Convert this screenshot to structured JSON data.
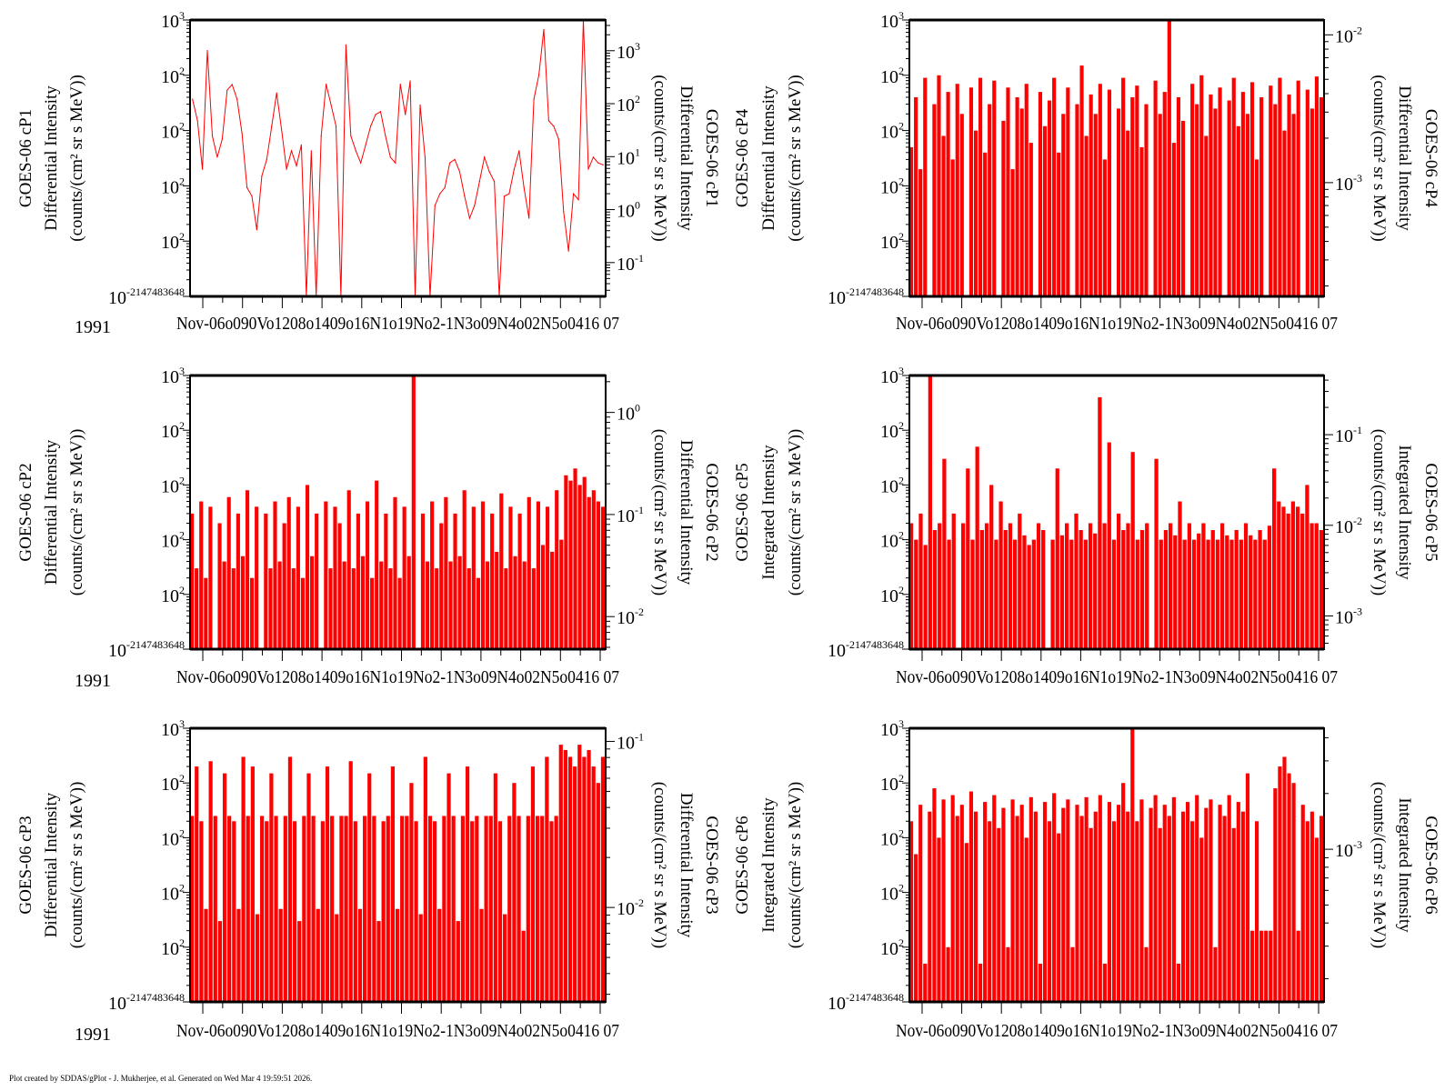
{
  "footer": "Plot created by SDDAS/gPlot - J. Mukherjee, et al.  Generated on Wed Mar 4 19:59:51 2026.",
  "year_label": "1991",
  "x_tick_text": "Nov-06o090Vo1208o1409o16N1o19No2-1N3o09N4o02N5o0416 07",
  "colors": {
    "series": "#ff0000",
    "axis": "#000000"
  },
  "chart_data": [
    {
      "type": "line",
      "scale": "log",
      "title": "GOES-06 cP1",
      "ylabel": "Differential Intensity",
      "yunits": "(counts/(cm² sr s MeV))",
      "left_tick_exponents": [
        "3",
        "2",
        "2",
        "2",
        "2",
        "-2147483648"
      ],
      "ylim": [
        0.01,
        1000
      ],
      "right_ylim": [
        0.023,
        3800
      ],
      "right_tick_exponents": [
        "3",
        "2",
        "1",
        "0",
        "-1"
      ],
      "values": [
        37,
        15,
        2,
        280,
        8,
        3.3,
        7,
        54,
        68,
        37,
        9,
        0.93,
        0.65,
        0.16,
        1.5,
        3,
        12,
        48,
        10.5,
        2,
        4.3,
        2.3,
        5.5,
        0.01,
        4.3,
        0.01,
        8,
        69,
        29,
        12,
        0.01,
        355,
        8,
        4.3,
        2.6,
        5.5,
        12,
        19.5,
        22,
        8,
        3.3,
        2.6,
        69,
        19.5,
        79,
        0.01,
        29,
        3.3,
        0.01,
        0.44,
        0.72,
        0.93,
        2.6,
        3,
        1.8,
        0.65,
        0.26,
        0.44,
        1.2,
        3.3,
        1.8,
        1.2,
        0.01,
        0.65,
        0.72,
        2,
        4.3,
        0.93,
        0.26,
        37,
        102,
        676,
        15,
        12,
        7,
        0.34,
        0.066,
        0.72,
        0.56,
        1000,
        2,
        3.3,
        2.6,
        2.4
      ]
    },
    {
      "type": "bar",
      "scale": "log",
      "title": "GOES-06 cP4",
      "ylabel": "Differential Intensity",
      "yunits": "(counts/(cm² sr s MeV))",
      "left_tick_exponents": [
        "3",
        "2",
        "2",
        "2",
        "2",
        "-2147483648"
      ],
      "ylim": [
        0.01,
        1000
      ],
      "right_ylim": [
        0.00017,
        0.0126
      ],
      "right_tick_exponents": [
        "-2",
        "-3"
      ],
      "values": [
        5,
        40,
        2,
        90,
        0.01,
        30,
        100,
        8,
        50,
        3,
        70,
        20,
        0.01,
        60,
        10,
        90,
        4,
        30,
        80,
        0.01,
        15,
        60,
        2,
        40,
        25,
        70,
        6,
        0.01,
        50,
        12,
        35,
        90,
        4,
        20,
        60,
        0.01,
        30,
        150,
        8,
        45,
        20,
        70,
        3,
        55,
        0.01,
        25,
        90,
        10,
        40,
        65,
        5,
        30,
        0.01,
        80,
        20,
        50,
        1000,
        6,
        40,
        15,
        0.01,
        70,
        30,
        100,
        8,
        45,
        25,
        60,
        0.01,
        35,
        90,
        12,
        50,
        20,
        75,
        3,
        40,
        0.01,
        65,
        30,
        90,
        10,
        45,
        20,
        80,
        0.01,
        55,
        25,
        95,
        40
      ]
    },
    {
      "type": "bar",
      "scale": "log",
      "title": "GOES-06 cP2",
      "ylabel": "Differential Intensity",
      "yunits": "(counts/(cm² sr s MeV))",
      "left_tick_exponents": [
        "3",
        "2",
        "2",
        "2",
        "2",
        "-2147483648"
      ],
      "ylim": [
        0.01,
        1000
      ],
      "right_ylim": [
        0.0048,
        2.3
      ],
      "right_tick_exponents": [
        "0",
        "-1",
        "-2"
      ],
      "values": [
        3,
        0.3,
        5,
        0.2,
        4,
        0.01,
        2,
        0.4,
        6,
        0.3,
        3,
        0.5,
        8,
        0.2,
        4,
        0.01,
        3,
        0.3,
        5,
        0.4,
        2,
        6,
        0.3,
        4,
        0.2,
        10,
        0.5,
        3,
        0.01,
        5,
        0.3,
        4,
        2,
        0.4,
        8,
        0.3,
        3,
        0.5,
        5,
        0.2,
        12,
        0.4,
        3,
        0.3,
        6,
        0.2,
        4,
        0.5,
        1000,
        0.01,
        3,
        0.4,
        5,
        0.3,
        2,
        6,
        0.4,
        3,
        0.5,
        8,
        0.3,
        4,
        0.2,
        5,
        0.4,
        3,
        0.6,
        7,
        0.3,
        4,
        0.5,
        3,
        0.4,
        6,
        0.3,
        5,
        0.8,
        4,
        0.6,
        8,
        1,
        15,
        12,
        20,
        10,
        14,
        6,
        8,
        5,
        4
      ]
    },
    {
      "type": "bar",
      "scale": "log",
      "title": "GOES-06 cP5",
      "ylabel": "Integrated Intensity",
      "yunits": "(counts/(cm² sr s MeV))",
      "left_tick_exponents": [
        "3",
        "2",
        "2",
        "2",
        "2",
        "-2147483648"
      ],
      "ylim": [
        0.01,
        1000
      ],
      "right_ylim": [
        0.00043,
        0.45
      ],
      "right_tick_exponents": [
        "-1",
        "-2",
        "-3"
      ],
      "values": [
        2,
        1,
        3,
        0.8,
        1000,
        1.5,
        2,
        30,
        1,
        3,
        0.01,
        2,
        20,
        1,
        50,
        1.5,
        2,
        10,
        1,
        5,
        1.5,
        2,
        1,
        3,
        1.2,
        0.8,
        1,
        2,
        1.5,
        0.01,
        1,
        20,
        1.2,
        2,
        1,
        3,
        1.5,
        1,
        2,
        1.3,
        400,
        2,
        60,
        1,
        3,
        1.5,
        2,
        40,
        1,
        1.5,
        2,
        0.01,
        30,
        1,
        1.5,
        2,
        1.2,
        5,
        1,
        2,
        1,
        1.3,
        2,
        1,
        1.5,
        1,
        2,
        1.2,
        1,
        1.5,
        1,
        2,
        1.2,
        1,
        1.5,
        1,
        1.8,
        20,
        5,
        4,
        3,
        5,
        4,
        3,
        10,
        2,
        2,
        1.5
      ]
    },
    {
      "type": "bar",
      "scale": "log",
      "title": "GOES-06 cP3",
      "ylabel": "Differential Intensity",
      "yunits": "(counts/(cm² sr s MeV))",
      "left_tick_exponents": [
        "3",
        "2",
        "2",
        "2",
        "2",
        "-2147483648"
      ],
      "ylim": [
        0.01,
        1000
      ],
      "right_ylim": [
        0.0027,
        0.12
      ],
      "right_tick_exponents": [
        "-1",
        "-2"
      ],
      "values": [
        25,
        200,
        20,
        0.5,
        250,
        25,
        0.3,
        150,
        25,
        20,
        0.5,
        300,
        25,
        200,
        0.4,
        25,
        20,
        150,
        25,
        0.5,
        25,
        300,
        20,
        0.3,
        25,
        150,
        25,
        0.5,
        20,
        200,
        25,
        0.4,
        25,
        25,
        250,
        20,
        0.5,
        25,
        150,
        25,
        0.3,
        20,
        25,
        200,
        0.5,
        25,
        25,
        100,
        20,
        0.4,
        300,
        25,
        20,
        0.5,
        25,
        150,
        25,
        0.3,
        25,
        200,
        20,
        25,
        0.5,
        25,
        25,
        150,
        20,
        0.4,
        25,
        100,
        25,
        0.2,
        25,
        200,
        25,
        25,
        300,
        20,
        25,
        500,
        400,
        300,
        200,
        500,
        300,
        400,
        200,
        100,
        300
      ]
    },
    {
      "type": "bar",
      "scale": "log",
      "title": "GOES-06 cP6",
      "ylabel": "Integrated Intensity",
      "yunits": "(counts/(cm² sr s MeV))",
      "left_tick_exponents": [
        "3",
        "2",
        "2",
        "2",
        "2",
        "-2147483648"
      ],
      "ylim": [
        0.01,
        1000
      ],
      "right_ylim": [
        0.00015,
        0.0045
      ],
      "right_tick_exponents": [
        "-3"
      ],
      "values": [
        20,
        5,
        40,
        0.05,
        30,
        80,
        10,
        50,
        0.1,
        60,
        25,
        40,
        8,
        70,
        30,
        0.05,
        45,
        20,
        60,
        15,
        35,
        0.1,
        50,
        25,
        40,
        10,
        55,
        30,
        0.05,
        45,
        20,
        65,
        12,
        35,
        50,
        0.1,
        40,
        25,
        55,
        15,
        30,
        60,
        0.05,
        45,
        20,
        40,
        100,
        30,
        1000,
        20,
        50,
        0.1,
        35,
        60,
        15,
        40,
        25,
        55,
        0.05,
        30,
        45,
        20,
        60,
        10,
        35,
        50,
        0.1,
        40,
        25,
        60,
        15,
        45,
        30,
        150,
        0.2,
        20,
        0.2,
        0.2,
        0.2,
        80,
        200,
        300,
        150,
        100,
        0.2,
        40,
        20,
        30,
        10,
        25
      ]
    }
  ]
}
